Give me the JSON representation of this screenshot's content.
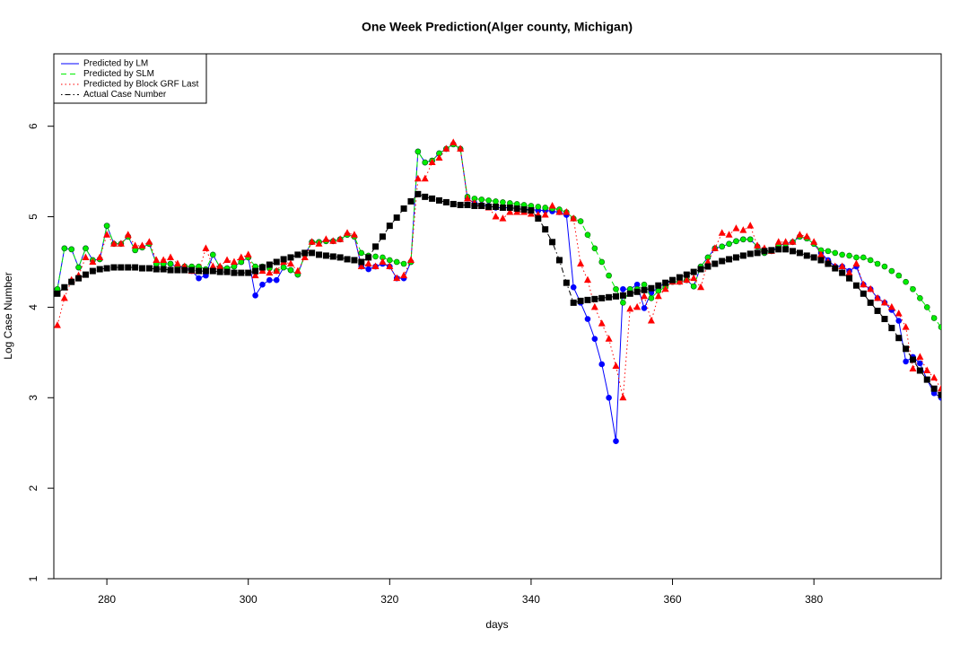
{
  "chart_data": {
    "type": "line",
    "title": "One Week Prediction(Alger county, Michigan)",
    "x_label": "days",
    "y_label": "Log Case Number",
    "xlim": [
      272.5,
      398
    ],
    "ylim": [
      1,
      6.8
    ],
    "xticks": [
      280,
      300,
      320,
      340,
      360,
      380
    ],
    "yticks": [
      1,
      2,
      3,
      4,
      5,
      6
    ],
    "legend": "topleft",
    "x": [
      273,
      274,
      275,
      276,
      277,
      278,
      279,
      280,
      281,
      282,
      283,
      284,
      285,
      286,
      287,
      288,
      289,
      290,
      291,
      292,
      293,
      294,
      295,
      296,
      297,
      298,
      299,
      300,
      301,
      302,
      303,
      304,
      305,
      306,
      307,
      308,
      309,
      310,
      311,
      312,
      313,
      314,
      315,
      316,
      317,
      318,
      319,
      320,
      321,
      322,
      323,
      324,
      325,
      326,
      327,
      328,
      329,
      330,
      331,
      332,
      333,
      334,
      335,
      336,
      337,
      338,
      339,
      340,
      341,
      342,
      343,
      344,
      345,
      346,
      347,
      348,
      349,
      350,
      351,
      352,
      353,
      354,
      355,
      356,
      357,
      358,
      359,
      360,
      361,
      362,
      363,
      364,
      365,
      366,
      367,
      368,
      369,
      370,
      371,
      372,
      373,
      374,
      375,
      376,
      377,
      378,
      379,
      380,
      381,
      382,
      383,
      384,
      385,
      386,
      387,
      388,
      389,
      390,
      391,
      392,
      393,
      394,
      395,
      396,
      397,
      398
    ],
    "series": [
      {
        "name": "Predicted by LM",
        "color": "#0000ff",
        "line_style": "solid",
        "marker": "circle",
        "values": [
          4.2,
          4.65,
          4.64,
          4.44,
          4.65,
          4.52,
          4.53,
          4.9,
          4.7,
          4.7,
          4.78,
          4.63,
          4.66,
          4.7,
          4.48,
          4.48,
          4.48,
          4.44,
          4.45,
          4.4,
          4.32,
          4.35,
          4.58,
          4.44,
          4.43,
          4.45,
          4.5,
          4.55,
          4.13,
          4.25,
          4.3,
          4.3,
          4.44,
          4.41,
          4.36,
          4.58,
          4.72,
          4.72,
          4.73,
          4.73,
          4.75,
          4.8,
          4.78,
          4.45,
          4.42,
          4.45,
          4.48,
          4.45,
          4.32,
          4.32,
          4.5,
          5.72,
          5.6,
          5.62,
          5.7,
          5.75,
          5.8,
          5.75,
          5.2,
          5.15,
          5.13,
          5.12,
          5.1,
          5.1,
          5.1,
          5.09,
          5.08,
          5.08,
          5.07,
          5.07,
          5.06,
          5.05,
          5.02,
          4.22,
          4.05,
          3.87,
          3.65,
          3.37,
          3.0,
          2.52,
          4.2,
          4.2,
          4.25,
          3.99,
          4.16,
          4.22,
          4.27,
          4.28,
          4.28,
          4.3,
          4.23,
          4.45,
          4.55,
          4.65,
          4.67,
          4.7,
          4.73,
          4.75,
          4.75,
          4.67,
          4.6,
          4.62,
          4.68,
          4.7,
          4.72,
          4.78,
          4.76,
          4.7,
          4.6,
          4.52,
          4.45,
          4.45,
          4.4,
          4.45,
          4.25,
          4.2,
          4.1,
          4.05,
          3.97,
          3.85,
          3.4,
          3.45,
          3.38,
          3.2,
          3.05,
          3.0
        ]
      },
      {
        "name": "Predicted by SLM",
        "color": "#00ee00",
        "line_style": "dashed",
        "marker": "circle",
        "values": [
          4.2,
          4.65,
          4.64,
          4.44,
          4.65,
          4.52,
          4.53,
          4.9,
          4.7,
          4.7,
          4.78,
          4.63,
          4.66,
          4.7,
          4.48,
          4.48,
          4.48,
          4.44,
          4.45,
          4.45,
          4.45,
          4.42,
          4.58,
          4.44,
          4.43,
          4.45,
          4.5,
          4.55,
          4.45,
          4.45,
          4.43,
          4.4,
          4.44,
          4.41,
          4.36,
          4.58,
          4.72,
          4.72,
          4.73,
          4.73,
          4.75,
          4.8,
          4.78,
          4.6,
          4.57,
          4.56,
          4.55,
          4.52,
          4.5,
          4.48,
          4.5,
          5.72,
          5.6,
          5.62,
          5.7,
          5.75,
          5.8,
          5.75,
          5.22,
          5.2,
          5.19,
          5.18,
          5.17,
          5.16,
          5.15,
          5.14,
          5.13,
          5.12,
          5.11,
          5.1,
          5.09,
          5.08,
          5.05,
          4.98,
          4.95,
          4.8,
          4.65,
          4.5,
          4.35,
          4.2,
          4.05,
          4.2,
          4.2,
          4.25,
          4.1,
          4.18,
          4.22,
          4.28,
          4.28,
          4.3,
          4.23,
          4.45,
          4.55,
          4.65,
          4.67,
          4.7,
          4.73,
          4.75,
          4.75,
          4.67,
          4.6,
          4.62,
          4.68,
          4.7,
          4.72,
          4.78,
          4.76,
          4.7,
          4.63,
          4.62,
          4.6,
          4.58,
          4.57,
          4.55,
          4.55,
          4.52,
          4.48,
          4.45,
          4.4,
          4.35,
          4.28,
          4.2,
          4.1,
          4.0,
          3.88,
          3.78
        ]
      },
      {
        "name": "Predicted by Block GRF Last",
        "color": "#ff0000",
        "line_style": "dotted",
        "marker": "triangle",
        "values": [
          3.8,
          4.1,
          4.3,
          4.35,
          4.55,
          4.5,
          4.55,
          4.8,
          4.7,
          4.7,
          4.8,
          4.68,
          4.68,
          4.72,
          4.52,
          4.52,
          4.55,
          4.48,
          4.45,
          4.4,
          4.4,
          4.65,
          4.45,
          4.45,
          4.52,
          4.5,
          4.55,
          4.58,
          4.35,
          4.4,
          4.38,
          4.4,
          4.5,
          4.48,
          4.4,
          4.55,
          4.72,
          4.7,
          4.75,
          4.73,
          4.75,
          4.82,
          4.8,
          4.45,
          4.48,
          4.45,
          4.5,
          4.45,
          4.32,
          4.35,
          4.52,
          5.42,
          5.42,
          5.6,
          5.65,
          5.75,
          5.82,
          5.75,
          5.2,
          5.15,
          5.12,
          5.1,
          5.0,
          4.98,
          5.05,
          5.05,
          5.05,
          5.03,
          5.02,
          5.02,
          5.12,
          5.05,
          5.05,
          4.98,
          4.48,
          4.3,
          4.0,
          3.82,
          3.65,
          3.35,
          3.0,
          3.98,
          4.0,
          4.12,
          3.85,
          4.12,
          4.2,
          4.28,
          4.28,
          4.3,
          4.32,
          4.22,
          4.5,
          4.65,
          4.82,
          4.8,
          4.87,
          4.85,
          4.9,
          4.68,
          4.65,
          4.62,
          4.72,
          4.72,
          4.72,
          4.8,
          4.78,
          4.72,
          4.58,
          4.5,
          4.45,
          4.45,
          4.38,
          4.48,
          4.25,
          4.2,
          4.1,
          4.05,
          4.0,
          3.93,
          3.78,
          3.32,
          3.45,
          3.3,
          3.22,
          3.1
        ]
      },
      {
        "name": "Actual Case Number",
        "color": "#000000",
        "line_style": "dotdash",
        "marker": "square",
        "values": [
          4.15,
          4.22,
          4.28,
          4.32,
          4.36,
          4.4,
          4.42,
          4.43,
          4.44,
          4.44,
          4.44,
          4.44,
          4.43,
          4.43,
          4.42,
          4.42,
          4.41,
          4.41,
          4.41,
          4.41,
          4.4,
          4.4,
          4.4,
          4.39,
          4.39,
          4.38,
          4.38,
          4.38,
          4.4,
          4.44,
          4.47,
          4.5,
          4.53,
          4.55,
          4.58,
          4.6,
          4.6,
          4.58,
          4.57,
          4.56,
          4.55,
          4.53,
          4.52,
          4.5,
          4.55,
          4.67,
          4.78,
          4.9,
          4.99,
          5.09,
          5.17,
          5.25,
          5.22,
          5.2,
          5.18,
          5.16,
          5.14,
          5.13,
          5.13,
          5.12,
          5.12,
          5.11,
          5.11,
          5.1,
          5.1,
          5.09,
          5.08,
          5.07,
          4.98,
          4.86,
          4.72,
          4.52,
          4.27,
          4.05,
          4.07,
          4.08,
          4.09,
          4.1,
          4.11,
          4.12,
          4.13,
          4.15,
          4.17,
          4.19,
          4.21,
          4.24,
          4.27,
          4.3,
          4.33,
          4.36,
          4.39,
          4.42,
          4.45,
          4.48,
          4.51,
          4.53,
          4.55,
          4.57,
          4.59,
          4.6,
          4.62,
          4.63,
          4.64,
          4.64,
          4.62,
          4.6,
          4.57,
          4.55,
          4.52,
          4.48,
          4.43,
          4.38,
          4.32,
          4.24,
          4.15,
          4.05,
          3.96,
          3.87,
          3.77,
          3.66,
          3.54,
          3.42,
          3.3,
          3.2,
          3.1,
          3.03
        ]
      }
    ]
  }
}
